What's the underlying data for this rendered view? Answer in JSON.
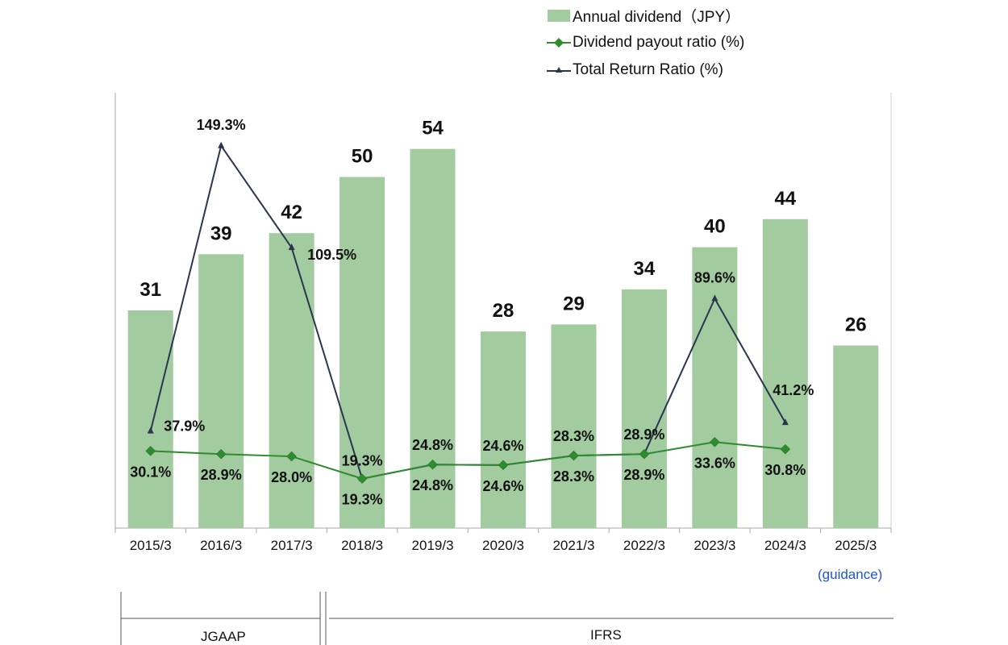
{
  "legend": {
    "dividend": "Annual dividend（JPY）",
    "payout": "Dividend payout ratio (%)",
    "total_return": "Total Return Ratio (%)"
  },
  "accounting": {
    "jgaap": "JGAAP",
    "ifrs": "IFRS"
  },
  "guidance_note": "(guidance)",
  "colors": {
    "bar": "#a3cba0",
    "payout_line": "#2e8b2e",
    "total_return_line": "#2b3550",
    "axis": "#aaaaaa",
    "guidance": "#1e56c8"
  },
  "chart_data": {
    "type": "bar",
    "categories": [
      "2015/3",
      "2016/3",
      "2017/3",
      "2018/3",
      "2019/3",
      "2020/3",
      "2021/3",
      "2022/3",
      "2023/3",
      "2024/3",
      "2025/3"
    ],
    "ylim_dividend": [
      0,
      62
    ],
    "ylim_ratio": [
      0,
      170
    ],
    "series": [
      {
        "name": "Annual dividend（JPY）",
        "type": "bar",
        "values": [
          31,
          39,
          42,
          50,
          54,
          28,
          29,
          34,
          40,
          44,
          26
        ],
        "labels": [
          "31",
          "39",
          "42",
          "50",
          "54",
          "28",
          "29",
          "34",
          "40",
          "44",
          "26"
        ]
      },
      {
        "name": "Dividend payout ratio (%)",
        "type": "line",
        "marker": "diamond",
        "values": [
          30.1,
          28.9,
          28.0,
          19.3,
          24.8,
          24.6,
          28.3,
          28.9,
          33.6,
          30.8,
          null
        ],
        "labels": [
          "30.1%",
          "28.9%",
          "28.0%",
          "19.3%",
          "24.8%",
          "24.6%",
          "28.3%",
          "28.9%",
          "33.6%",
          "30.8%",
          ""
        ]
      },
      {
        "name": "Total Return Ratio (%)",
        "type": "line",
        "marker": "triangle",
        "values": [
          37.9,
          149.3,
          109.5,
          19.3,
          24.8,
          24.6,
          28.3,
          28.9,
          89.6,
          41.2,
          null
        ],
        "labels": [
          "37.9%",
          "149.3%",
          "109.5%",
          "19.3%",
          "24.8%",
          "24.6%",
          "28.3%",
          "28.9%",
          "89.6%",
          "41.2%",
          ""
        ]
      }
    ],
    "grid": false,
    "legend_position": "top-right"
  }
}
